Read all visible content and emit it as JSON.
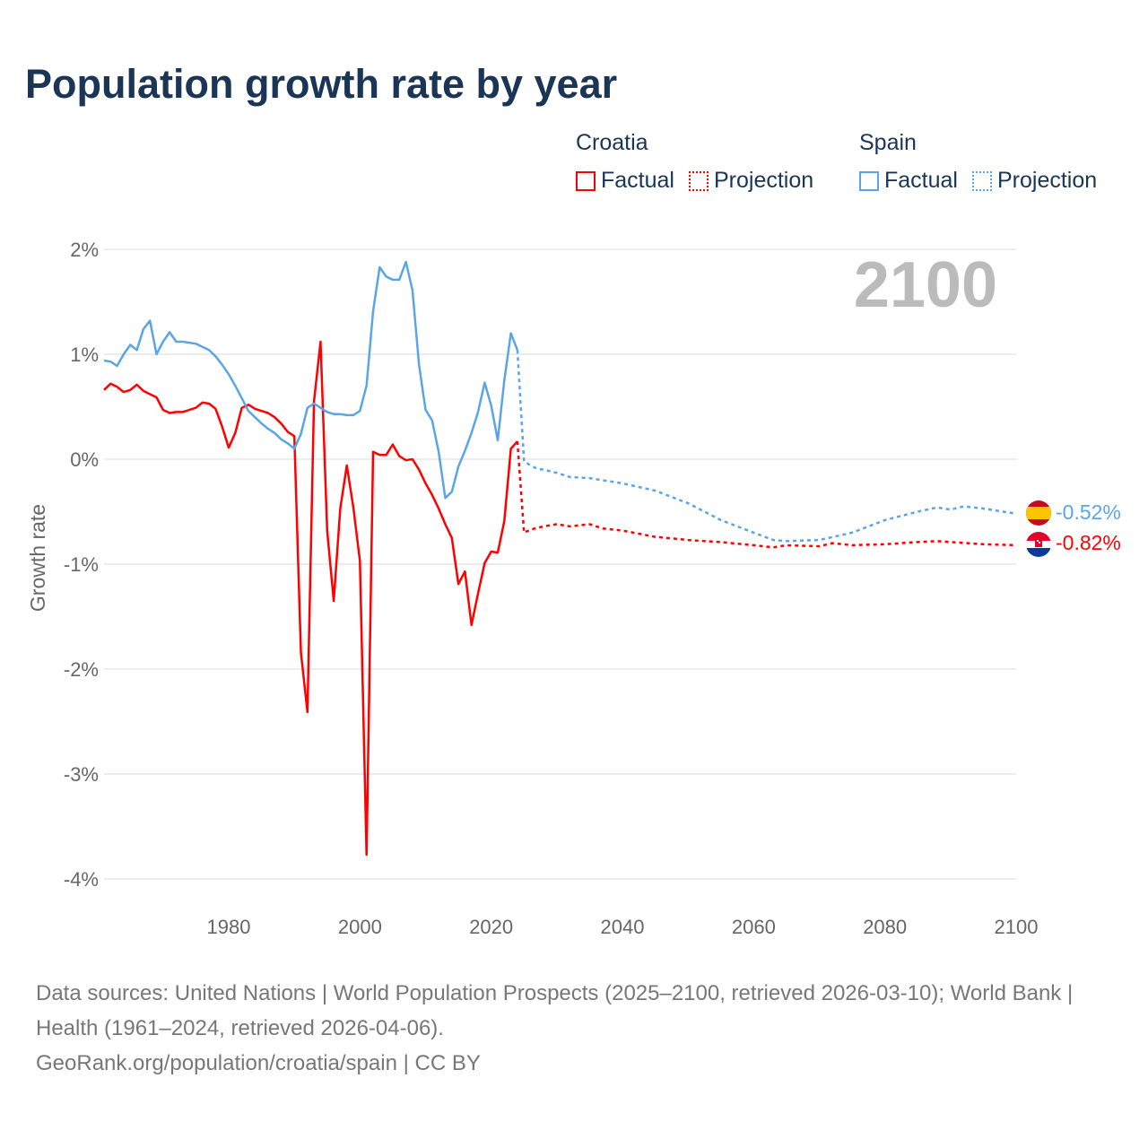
{
  "title": "Population growth rate by year",
  "legend": {
    "groups": [
      {
        "name": "Croatia",
        "color": "#ff0000",
        "items": [
          "Factual",
          "Projection"
        ]
      },
      {
        "name": "Spain",
        "color": "#5aa5e8",
        "items": [
          "Factual",
          "Projection"
        ]
      }
    ]
  },
  "year_label": "2100",
  "end_labels": {
    "croatia": "-0.82%",
    "spain": "-0.52%"
  },
  "footer": {
    "sources": "Data sources: United Nations | World Population Prospects (2025–2100, retrieved 2026-03-10); World Bank | Health (1961–2024, retrieved 2026-04-06).",
    "credit": "GeoRank.org/population/croatia/spain | CC BY"
  },
  "chart_data": {
    "type": "line",
    "title": "Population growth rate by year",
    "xlabel": "",
    "ylabel": "Growth rate",
    "xlim": [
      1961,
      2100
    ],
    "ylim": [
      -4.2,
      2.2
    ],
    "x_ticks": [
      1980,
      2000,
      2020,
      2040,
      2060,
      2080,
      2100
    ],
    "y_ticks": [
      2,
      1,
      0,
      -1,
      -2,
      -3,
      -4
    ],
    "y_tick_labels": [
      "2%",
      "1%",
      "0%",
      "-1%",
      "-2%",
      "-3%",
      "-4%"
    ],
    "grid": true,
    "legend_position": "top-right",
    "series": [
      {
        "name": "Croatia Factual",
        "color": "#ff0000",
        "style": "solid",
        "x_start": 1961,
        "values": [
          0.66,
          0.72,
          0.69,
          0.64,
          0.66,
          0.71,
          0.65,
          0.62,
          0.59,
          0.47,
          0.44,
          0.45,
          0.45,
          0.47,
          0.49,
          0.54,
          0.53,
          0.48,
          0.31,
          0.11,
          0.25,
          0.49,
          0.52,
          0.48,
          0.46,
          0.44,
          0.4,
          0.34,
          0.26,
          0.22,
          -1.84,
          -2.41,
          0.55,
          1.12,
          -0.68,
          -1.35,
          -0.47,
          -0.06,
          -0.46,
          -0.97,
          -3.77,
          0.07,
          0.04,
          0.04,
          0.14,
          0.03,
          -0.01,
          0.0,
          -0.1,
          -0.23,
          -0.34,
          -0.47,
          -0.62,
          -0.75,
          -1.19,
          -1.07,
          -1.58,
          -1.28,
          -0.99,
          -0.88,
          -0.89,
          -0.59,
          0.1,
          0.17
        ]
      },
      {
        "name": "Croatia Projection",
        "color": "#ff0000",
        "style": "dotted",
        "points": [
          [
            2024,
            0.17
          ],
          [
            2025,
            -0.7
          ],
          [
            2026,
            -0.67
          ],
          [
            2028,
            -0.64
          ],
          [
            2030,
            -0.62
          ],
          [
            2032,
            -0.64
          ],
          [
            2035,
            -0.62
          ],
          [
            2037,
            -0.66
          ],
          [
            2040,
            -0.68
          ],
          [
            2045,
            -0.74
          ],
          [
            2050,
            -0.77
          ],
          [
            2055,
            -0.79
          ],
          [
            2060,
            -0.82
          ],
          [
            2063,
            -0.84
          ],
          [
            2065,
            -0.82
          ],
          [
            2070,
            -0.83
          ],
          [
            2072,
            -0.8
          ],
          [
            2075,
            -0.82
          ],
          [
            2080,
            -0.81
          ],
          [
            2085,
            -0.79
          ],
          [
            2088,
            -0.78
          ],
          [
            2090,
            -0.79
          ],
          [
            2095,
            -0.81
          ],
          [
            2100,
            -0.82
          ]
        ]
      },
      {
        "name": "Spain Factual",
        "color": "#5aa5e8",
        "style": "solid",
        "x_start": 1961,
        "values": [
          0.94,
          0.93,
          0.89,
          1.0,
          1.09,
          1.04,
          1.24,
          1.32,
          1.0,
          1.12,
          1.21,
          1.12,
          1.12,
          1.11,
          1.1,
          1.07,
          1.04,
          0.98,
          0.9,
          0.81,
          0.7,
          0.58,
          0.46,
          0.4,
          0.34,
          0.29,
          0.25,
          0.19,
          0.15,
          0.1,
          0.24,
          0.49,
          0.53,
          0.49,
          0.45,
          0.43,
          0.43,
          0.42,
          0.42,
          0.46,
          0.7,
          1.41,
          1.83,
          1.74,
          1.71,
          1.71,
          1.88,
          1.61,
          0.9,
          0.47,
          0.37,
          0.07,
          -0.37,
          -0.31,
          -0.07,
          0.08,
          0.25,
          0.45,
          0.73,
          0.51,
          0.18,
          0.75,
          1.2,
          1.04
        ]
      },
      {
        "name": "Spain Projection",
        "color": "#5aa5e8",
        "style": "dotted",
        "points": [
          [
            2024,
            1.04
          ],
          [
            2025,
            -0.02
          ],
          [
            2026,
            -0.06
          ],
          [
            2027,
            -0.09
          ],
          [
            2028,
            -0.1
          ],
          [
            2030,
            -0.13
          ],
          [
            2032,
            -0.17
          ],
          [
            2035,
            -0.18
          ],
          [
            2038,
            -0.21
          ],
          [
            2040,
            -0.23
          ],
          [
            2045,
            -0.3
          ],
          [
            2050,
            -0.42
          ],
          [
            2055,
            -0.58
          ],
          [
            2060,
            -0.7
          ],
          [
            2063,
            -0.77
          ],
          [
            2065,
            -0.78
          ],
          [
            2070,
            -0.77
          ],
          [
            2075,
            -0.7
          ],
          [
            2080,
            -0.58
          ],
          [
            2085,
            -0.5
          ],
          [
            2088,
            -0.46
          ],
          [
            2090,
            -0.48
          ],
          [
            2092,
            -0.45
          ],
          [
            2095,
            -0.47
          ],
          [
            2098,
            -0.5
          ],
          [
            2100,
            -0.52
          ]
        ]
      }
    ]
  }
}
